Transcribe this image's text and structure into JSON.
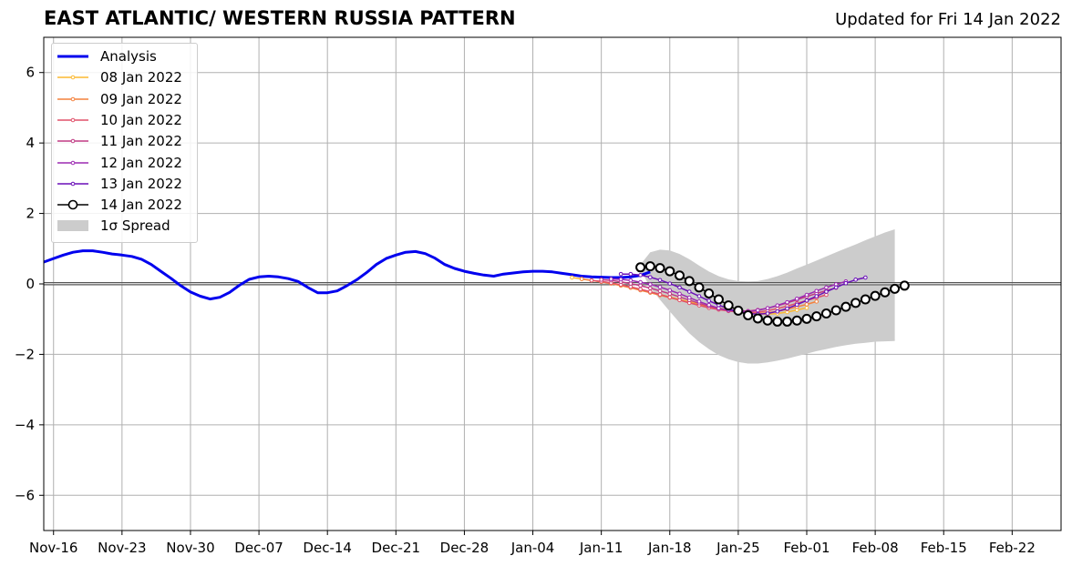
{
  "header": {
    "title": "EAST ATLANTIC/ WESTERN RUSSIA PATTERN",
    "updated": "Updated for Fri 14 Jan 2022"
  },
  "chart_data": {
    "type": "line",
    "title": "EAST ATLANTIC/ WESTERN RUSSIA PATTERN",
    "xlabel": "",
    "ylabel": "",
    "x_axis": "dates",
    "xlim": [
      "2021-11-15",
      "2022-02-27"
    ],
    "ylim": [
      -7,
      7
    ],
    "yticks": [
      -6,
      -4,
      -2,
      0,
      2,
      4,
      6
    ],
    "xtick_labels": [
      "Nov-16",
      "Nov-23",
      "Nov-30",
      "Dec-07",
      "Dec-14",
      "Dec-21",
      "Dec-28",
      "Jan-04",
      "Jan-11",
      "Jan-18",
      "Jan-25",
      "Feb-01",
      "Feb-08",
      "Feb-15",
      "Feb-22"
    ],
    "xtick_dates": [
      "2021-11-16",
      "2021-11-23",
      "2021-11-30",
      "2021-12-07",
      "2021-12-14",
      "2021-12-21",
      "2021-12-28",
      "2022-01-04",
      "2022-01-11",
      "2022-01-18",
      "2022-01-25",
      "2022-02-01",
      "2022-02-08",
      "2022-02-15",
      "2022-02-22"
    ],
    "grid": true,
    "zero_line": true,
    "legend_position": "upper-left",
    "analysis": {
      "name": "Analysis",
      "color": "#0000ee",
      "start_date": "2021-11-15",
      "values": [
        0.62,
        0.72,
        0.82,
        0.9,
        0.94,
        0.94,
        0.9,
        0.85,
        0.82,
        0.78,
        0.7,
        0.55,
        0.35,
        0.16,
        -0.05,
        -0.23,
        -0.35,
        -0.43,
        -0.38,
        -0.24,
        -0.04,
        0.13,
        0.2,
        0.22,
        0.2,
        0.15,
        0.07,
        -0.1,
        -0.25,
        -0.25,
        -0.2,
        -0.05,
        0.12,
        0.32,
        0.55,
        0.72,
        0.82,
        0.9,
        0.92,
        0.86,
        0.73,
        0.55,
        0.44,
        0.36,
        0.3,
        0.25,
        0.22,
        0.28,
        0.31,
        0.34,
        0.36,
        0.36,
        0.34,
        0.3,
        0.26,
        0.22,
        0.2,
        0.19,
        0.18,
        0.18,
        0.2,
        0.24,
        0.34
      ]
    },
    "forecasts": [
      {
        "name": "08 Jan 2022",
        "color": "#fcb931",
        "start_date": "2022-01-08",
        "values": [
          0.18,
          0.14,
          0.1,
          0.06,
          0.02,
          -0.04,
          -0.1,
          -0.17,
          -0.23,
          -0.3,
          -0.37,
          -0.44,
          -0.51,
          -0.57,
          -0.63,
          -0.68,
          -0.74,
          -0.79,
          -0.83,
          -0.85,
          -0.86,
          -0.84,
          -0.8,
          -0.74,
          -0.68
        ]
      },
      {
        "name": "09 Jan 2022",
        "color": "#f4813c",
        "start_date": "2022-01-09",
        "values": [
          0.14,
          0.1,
          0.06,
          0.01,
          -0.05,
          -0.11,
          -0.18,
          -0.25,
          -0.32,
          -0.39,
          -0.46,
          -0.53,
          -0.6,
          -0.66,
          -0.71,
          -0.76,
          -0.8,
          -0.83,
          -0.84,
          -0.82,
          -0.78,
          -0.72,
          -0.65,
          -0.58,
          -0.5
        ]
      },
      {
        "name": "10 Jan 2022",
        "color": "#e0506a",
        "start_date": "2022-01-10",
        "values": [
          0.1,
          0.07,
          0.03,
          -0.02,
          -0.08,
          -0.15,
          -0.22,
          -0.3,
          -0.38,
          -0.46,
          -0.54,
          -0.61,
          -0.68,
          -0.73,
          -0.77,
          -0.8,
          -0.81,
          -0.8,
          -0.76,
          -0.7,
          -0.63,
          -0.55,
          -0.47,
          -0.39,
          -0.31
        ]
      },
      {
        "name": "11 Jan 2022",
        "color": "#c03a83",
        "start_date": "2022-01-11",
        "values": [
          0.12,
          0.1,
          0.06,
          0.01,
          -0.05,
          -0.12,
          -0.2,
          -0.28,
          -0.37,
          -0.46,
          -0.55,
          -0.63,
          -0.7,
          -0.75,
          -0.77,
          -0.77,
          -0.74,
          -0.69,
          -0.62,
          -0.54,
          -0.45,
          -0.36,
          -0.27,
          -0.19,
          -0.11
        ]
      },
      {
        "name": "12 Jan 2022",
        "color": "#9c2ab2",
        "start_date": "2022-01-12",
        "values": [
          0.14,
          0.13,
          0.1,
          0.05,
          -0.01,
          -0.09,
          -0.18,
          -0.28,
          -0.39,
          -0.5,
          -0.6,
          -0.69,
          -0.75,
          -0.78,
          -0.78,
          -0.75,
          -0.69,
          -0.61,
          -0.52,
          -0.42,
          -0.31,
          -0.2,
          -0.1,
          -0.01,
          0.07
        ]
      },
      {
        "name": "13 Jan 2022",
        "color": "#6a0fb8",
        "start_date": "2022-01-13",
        "values": [
          0.28,
          0.28,
          0.25,
          0.19,
          0.11,
          0.01,
          -0.1,
          -0.22,
          -0.35,
          -0.48,
          -0.6,
          -0.71,
          -0.79,
          -0.84,
          -0.86,
          -0.84,
          -0.78,
          -0.7,
          -0.59,
          -0.47,
          -0.35,
          -0.22,
          -0.1,
          0.02,
          0.12,
          0.18
        ]
      }
    ],
    "current_forecast": {
      "name": "14 Jan 2022",
      "color": "#000000",
      "start_date": "2022-01-15",
      "values": [
        0.47,
        0.5,
        0.45,
        0.36,
        0.24,
        0.08,
        -0.1,
        -0.27,
        -0.44,
        -0.61,
        -0.76,
        -0.89,
        -0.98,
        -1.04,
        -1.07,
        -1.07,
        -1.04,
        -0.99,
        -0.92,
        -0.84,
        -0.75,
        -0.65,
        -0.54,
        -0.44,
        -0.34,
        -0.24,
        -0.14,
        -0.05
      ]
    },
    "spread": {
      "name": "1σ Spread",
      "color": "#cccccc",
      "start_date": "2022-01-15",
      "upper": [
        0.55,
        0.9,
        0.97,
        0.95,
        0.85,
        0.7,
        0.52,
        0.35,
        0.22,
        0.13,
        0.08,
        0.07,
        0.08,
        0.14,
        0.22,
        0.32,
        0.44,
        0.55,
        0.66,
        0.78,
        0.9,
        1.01,
        1.12,
        1.24,
        1.35,
        1.46,
        1.55
      ],
      "lower": [
        0.4,
        -0.1,
        -0.45,
        -0.78,
        -1.1,
        -1.4,
        -1.65,
        -1.85,
        -2.02,
        -2.14,
        -2.22,
        -2.26,
        -2.26,
        -2.23,
        -2.18,
        -2.12,
        -2.05,
        -1.98,
        -1.91,
        -1.85,
        -1.79,
        -1.74,
        -1.7,
        -1.67,
        -1.64,
        -1.63,
        -1.62
      ]
    }
  },
  "legend": {
    "items": [
      {
        "label": "Analysis",
        "color": "#0000ee",
        "style": "line"
      },
      {
        "label": "08 Jan 2022",
        "color": "#fcb931",
        "style": "marker-line"
      },
      {
        "label": "09 Jan 2022",
        "color": "#f4813c",
        "style": "marker-line"
      },
      {
        "label": "10 Jan 2022",
        "color": "#e0506a",
        "style": "marker-line"
      },
      {
        "label": "11 Jan 2022",
        "color": "#c03a83",
        "style": "marker-line"
      },
      {
        "label": "12 Jan 2022",
        "color": "#9c2ab2",
        "style": "marker-line"
      },
      {
        "label": "13 Jan 2022",
        "color": "#6a0fb8",
        "style": "marker-line"
      },
      {
        "label": "14 Jan 2022",
        "color": "#000000",
        "style": "circle-line"
      },
      {
        "label": "1σ Spread",
        "color": "#cccccc",
        "style": "patch"
      }
    ]
  }
}
